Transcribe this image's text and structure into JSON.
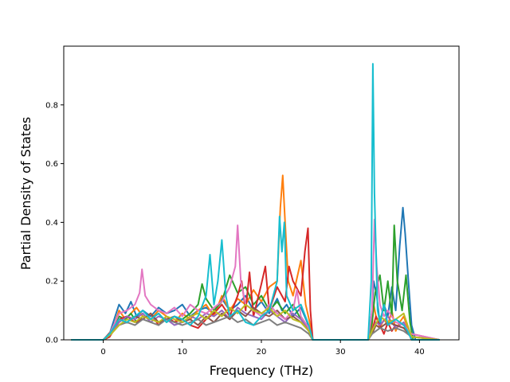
{
  "chart_data": {
    "type": "line",
    "title": "",
    "xlabel": "Frequency (THz)",
    "ylabel": "Partial Density of States",
    "xlim": [
      -5,
      45
    ],
    "ylim": [
      0,
      1.0
    ],
    "xticks": [
      0,
      10,
      20,
      30,
      40
    ],
    "yticks": [
      0.0,
      0.2,
      0.4,
      0.6,
      0.8
    ],
    "xtick_labels": [
      "0",
      "10",
      "20",
      "30",
      "40"
    ],
    "ytick_labels": [
      "0.0",
      "0.2",
      "0.4",
      "0.6",
      "0.8"
    ],
    "grid": false,
    "legend": "none",
    "series": [
      {
        "color": "#1f77b4",
        "x": [
          -4,
          0,
          0.8,
          1.5,
          2,
          2.8,
          3.5,
          4.2,
          5,
          6,
          7,
          8,
          9,
          10,
          11,
          12,
          13,
          14,
          15,
          16,
          17,
          18,
          19,
          20,
          21,
          22,
          22.6,
          23.2,
          24,
          25,
          25.8,
          26.2,
          26.5,
          30,
          33.5,
          34,
          34.2,
          34.6,
          35,
          35.5,
          36,
          36.5,
          37,
          37.5,
          37.9,
          38.2,
          38.6,
          39,
          39.5,
          42.5
        ],
        "y": [
          0,
          0,
          0.02,
          0.08,
          0.12,
          0.09,
          0.13,
          0.08,
          0.1,
          0.08,
          0.11,
          0.09,
          0.1,
          0.12,
          0.08,
          0.1,
          0.11,
          0.09,
          0.14,
          0.1,
          0.12,
          0.15,
          0.1,
          0.13,
          0.09,
          0.14,
          0.1,
          0.12,
          0.08,
          0.11,
          0.06,
          0.02,
          0,
          0,
          0,
          0.1,
          0.2,
          0.15,
          0.05,
          0.12,
          0.08,
          0.18,
          0.1,
          0.32,
          0.45,
          0.36,
          0.2,
          0.05,
          0,
          0
        ]
      },
      {
        "color": "#ff7f0e",
        "x": [
          -4,
          0,
          0.8,
          1.5,
          2,
          2.8,
          3.5,
          4.2,
          5,
          6,
          7,
          8,
          9,
          10,
          11,
          12,
          13,
          14,
          15,
          16,
          17,
          18,
          19,
          20,
          21,
          22,
          22.4,
          22.7,
          23,
          23.4,
          24,
          25,
          25.6,
          26.2,
          26.5,
          30,
          33.5,
          34,
          34.2,
          34.5,
          35,
          35.5,
          36,
          36.5,
          37,
          37.5,
          38,
          38.5,
          39,
          42.5
        ],
        "y": [
          0,
          0,
          0.02,
          0.06,
          0.1,
          0.07,
          0.09,
          0.11,
          0.08,
          0.07,
          0.1,
          0.08,
          0.06,
          0.09,
          0.07,
          0.1,
          0.12,
          0.08,
          0.15,
          0.1,
          0.14,
          0.12,
          0.17,
          0.13,
          0.18,
          0.2,
          0.45,
          0.56,
          0.4,
          0.2,
          0.15,
          0.27,
          0.12,
          0.05,
          0,
          0,
          0,
          0.05,
          0.12,
          0.08,
          0.04,
          0.07,
          0.05,
          0.1,
          0.03,
          0.06,
          0.08,
          0.04,
          0,
          0
        ]
      },
      {
        "color": "#2ca02c",
        "x": [
          -4,
          0,
          0.8,
          1.5,
          2,
          2.8,
          3.5,
          4.2,
          5,
          6,
          7,
          8,
          9,
          10,
          11,
          12,
          12.5,
          13,
          14,
          15,
          16,
          17,
          18,
          19,
          20,
          21,
          22,
          23,
          24,
          25,
          26,
          26.5,
          30,
          33.5,
          34,
          34.4,
          35,
          35.5,
          36,
          36.5,
          36.8,
          37.2,
          37.8,
          38.3,
          38.8,
          39.2,
          42.5
        ],
        "y": [
          0,
          0,
          0.01,
          0.05,
          0.08,
          0.07,
          0.09,
          0.06,
          0.08,
          0.07,
          0.09,
          0.06,
          0.08,
          0.07,
          0.09,
          0.12,
          0.19,
          0.14,
          0.1,
          0.13,
          0.22,
          0.16,
          0.18,
          0.12,
          0.15,
          0.1,
          0.13,
          0.09,
          0.12,
          0.07,
          0.04,
          0,
          0,
          0,
          0.06,
          0.16,
          0.22,
          0.1,
          0.2,
          0.08,
          0.39,
          0.2,
          0.1,
          0.22,
          0.06,
          0,
          0
        ]
      },
      {
        "color": "#d62728",
        "x": [
          -4,
          0,
          0.8,
          1.5,
          2,
          3,
          4,
          5,
          6,
          7,
          8,
          9,
          10,
          11,
          12,
          13,
          14,
          15,
          16,
          17,
          17.5,
          18,
          18.5,
          19,
          20,
          20.5,
          21,
          22,
          23,
          23.5,
          24,
          25,
          25.5,
          25.9,
          26.2,
          26.5,
          30,
          33.5,
          34,
          34.5,
          35,
          35.5,
          36,
          36.5,
          37,
          38,
          39,
          42.5
        ],
        "y": [
          0,
          0,
          0.01,
          0.04,
          0.07,
          0.08,
          0.06,
          0.07,
          0.09,
          0.05,
          0.08,
          0.06,
          0.07,
          0.05,
          0.04,
          0.07,
          0.09,
          0.12,
          0.08,
          0.15,
          0.2,
          0.1,
          0.23,
          0.08,
          0.19,
          0.25,
          0.1,
          0.18,
          0.13,
          0.25,
          0.2,
          0.15,
          0.3,
          0.38,
          0.1,
          0,
          0,
          0,
          0.03,
          0.08,
          0.05,
          0.02,
          0.06,
          0.03,
          0.05,
          0.04,
          0.02,
          0
        ]
      },
      {
        "color": "#9467bd",
        "x": [
          -4,
          0,
          1,
          2,
          3,
          4,
          5,
          6,
          7,
          8,
          9,
          10,
          11,
          12,
          13,
          14,
          15,
          16,
          17,
          18,
          19,
          20,
          21,
          22,
          23,
          24,
          25,
          26,
          26.5,
          30,
          33.5,
          34,
          34.5,
          35,
          36,
          37,
          38,
          38.5,
          39,
          42.5
        ],
        "y": [
          0,
          0,
          0.02,
          0.06,
          0.08,
          0.07,
          0.09,
          0.06,
          0.08,
          0.07,
          0.05,
          0.06,
          0.08,
          0.07,
          0.09,
          0.08,
          0.1,
          0.07,
          0.11,
          0.09,
          0.08,
          0.07,
          0.1,
          0.08,
          0.06,
          0.09,
          0.07,
          0.03,
          0,
          0,
          0,
          0.03,
          0.06,
          0.05,
          0.08,
          0.04,
          0.06,
          0.03,
          0,
          0
        ]
      },
      {
        "color": "#8c564b",
        "x": [
          -4,
          0,
          1,
          2,
          3,
          4,
          5,
          6,
          7,
          8,
          9,
          10,
          11,
          12,
          13,
          14,
          15,
          16,
          17,
          18,
          19,
          20,
          21,
          22,
          23,
          24,
          25,
          26,
          26.5,
          30,
          33.5,
          34,
          34.5,
          35,
          36,
          37,
          38,
          39,
          42.5
        ],
        "y": [
          0,
          0,
          0.03,
          0.07,
          0.06,
          0.08,
          0.07,
          0.09,
          0.06,
          0.07,
          0.08,
          0.06,
          0.07,
          0.05,
          0.08,
          0.06,
          0.09,
          0.07,
          0.1,
          0.08,
          0.11,
          0.09,
          0.08,
          0.1,
          0.07,
          0.08,
          0.06,
          0.03,
          0,
          0,
          0,
          0.02,
          0.05,
          0.04,
          0.06,
          0.05,
          0.04,
          0.01,
          0
        ]
      },
      {
        "color": "#e377c2",
        "x": [
          -4,
          0,
          0.8,
          1.5,
          2,
          3,
          4,
          4.6,
          4.9,
          5.3,
          6,
          7,
          8,
          9,
          10,
          11,
          12,
          13,
          14,
          15,
          16,
          16.7,
          17,
          17.4,
          18,
          19,
          20,
          21,
          22,
          23,
          24,
          24.5,
          25,
          26,
          26.5,
          30,
          33.5,
          34,
          34.3,
          34.6,
          35,
          35.5,
          36,
          37,
          38,
          39,
          42.5
        ],
        "y": [
          0,
          0,
          0.02,
          0.06,
          0.09,
          0.1,
          0.12,
          0.16,
          0.24,
          0.15,
          0.12,
          0.1,
          0.09,
          0.11,
          0.08,
          0.12,
          0.1,
          0.09,
          0.11,
          0.13,
          0.18,
          0.25,
          0.39,
          0.2,
          0.12,
          0.1,
          0.08,
          0.12,
          0.09,
          0.07,
          0.1,
          0.17,
          0.08,
          0.04,
          0,
          0,
          0,
          0.1,
          0.41,
          0.25,
          0.12,
          0.08,
          0.1,
          0.06,
          0.05,
          0.02,
          0
        ]
      },
      {
        "color": "#7f7f7f",
        "x": [
          -4,
          0,
          1,
          2,
          3,
          4,
          5,
          6,
          7,
          8,
          9,
          10,
          11,
          12,
          13,
          14,
          15,
          16,
          17,
          18,
          19,
          20,
          21,
          22,
          23,
          24,
          25,
          26,
          26.5,
          30,
          33.5,
          34,
          35,
          36,
          37,
          38,
          39,
          42.5
        ],
        "y": [
          0,
          0,
          0.02,
          0.05,
          0.06,
          0.05,
          0.07,
          0.06,
          0.05,
          0.07,
          0.06,
          0.05,
          0.06,
          0.07,
          0.05,
          0.06,
          0.07,
          0.08,
          0.06,
          0.07,
          0.05,
          0.06,
          0.07,
          0.05,
          0.06,
          0.05,
          0.04,
          0.02,
          0,
          0,
          0,
          0.02,
          0.04,
          0.03,
          0.04,
          0.03,
          0.01,
          0
        ]
      },
      {
        "color": "#bcbd22",
        "x": [
          -4,
          0,
          1,
          2,
          3,
          4,
          5,
          6,
          7,
          8,
          9,
          10,
          11,
          12,
          13,
          14,
          15,
          16,
          17,
          18,
          19,
          20,
          21,
          22,
          23,
          24,
          25,
          26,
          26.5,
          30,
          33.5,
          34,
          35,
          36,
          37,
          38,
          38.5,
          39,
          42.5
        ],
        "y": [
          0,
          0,
          0.02,
          0.05,
          0.07,
          0.06,
          0.08,
          0.07,
          0.06,
          0.08,
          0.07,
          0.06,
          0.08,
          0.09,
          0.07,
          0.1,
          0.08,
          0.11,
          0.09,
          0.12,
          0.1,
          0.09,
          0.11,
          0.08,
          0.1,
          0.07,
          0.06,
          0.03,
          0,
          0,
          0,
          0.03,
          0.08,
          0.06,
          0.07,
          0.09,
          0.05,
          0.01,
          0
        ]
      },
      {
        "color": "#17becf",
        "x": [
          -4,
          0,
          0.8,
          1.5,
          2,
          3,
          4,
          5,
          6,
          7,
          8,
          9,
          10,
          11,
          12,
          13,
          13.5,
          14,
          14.5,
          15,
          15.5,
          16,
          17,
          18,
          19,
          20,
          21,
          22,
          22.3,
          22.6,
          22.9,
          23.2,
          24,
          25,
          26,
          26.5,
          30,
          33.5,
          33.9,
          34.1,
          34.3,
          34.7,
          35,
          35.5,
          36,
          37,
          38,
          38.5,
          39,
          42.5
        ],
        "y": [
          0,
          0,
          0.02,
          0.05,
          0.07,
          0.06,
          0.08,
          0.1,
          0.07,
          0.09,
          0.06,
          0.08,
          0.07,
          0.05,
          0.08,
          0.15,
          0.29,
          0.12,
          0.2,
          0.34,
          0.15,
          0.08,
          0.1,
          0.06,
          0.05,
          0.08,
          0.1,
          0.2,
          0.42,
          0.3,
          0.4,
          0.15,
          0.1,
          0.12,
          0.05,
          0,
          0,
          0,
          0.2,
          0.94,
          0.5,
          0.1,
          0.06,
          0.12,
          0.05,
          0.07,
          0.05,
          0.03,
          0,
          0
        ]
      }
    ]
  }
}
